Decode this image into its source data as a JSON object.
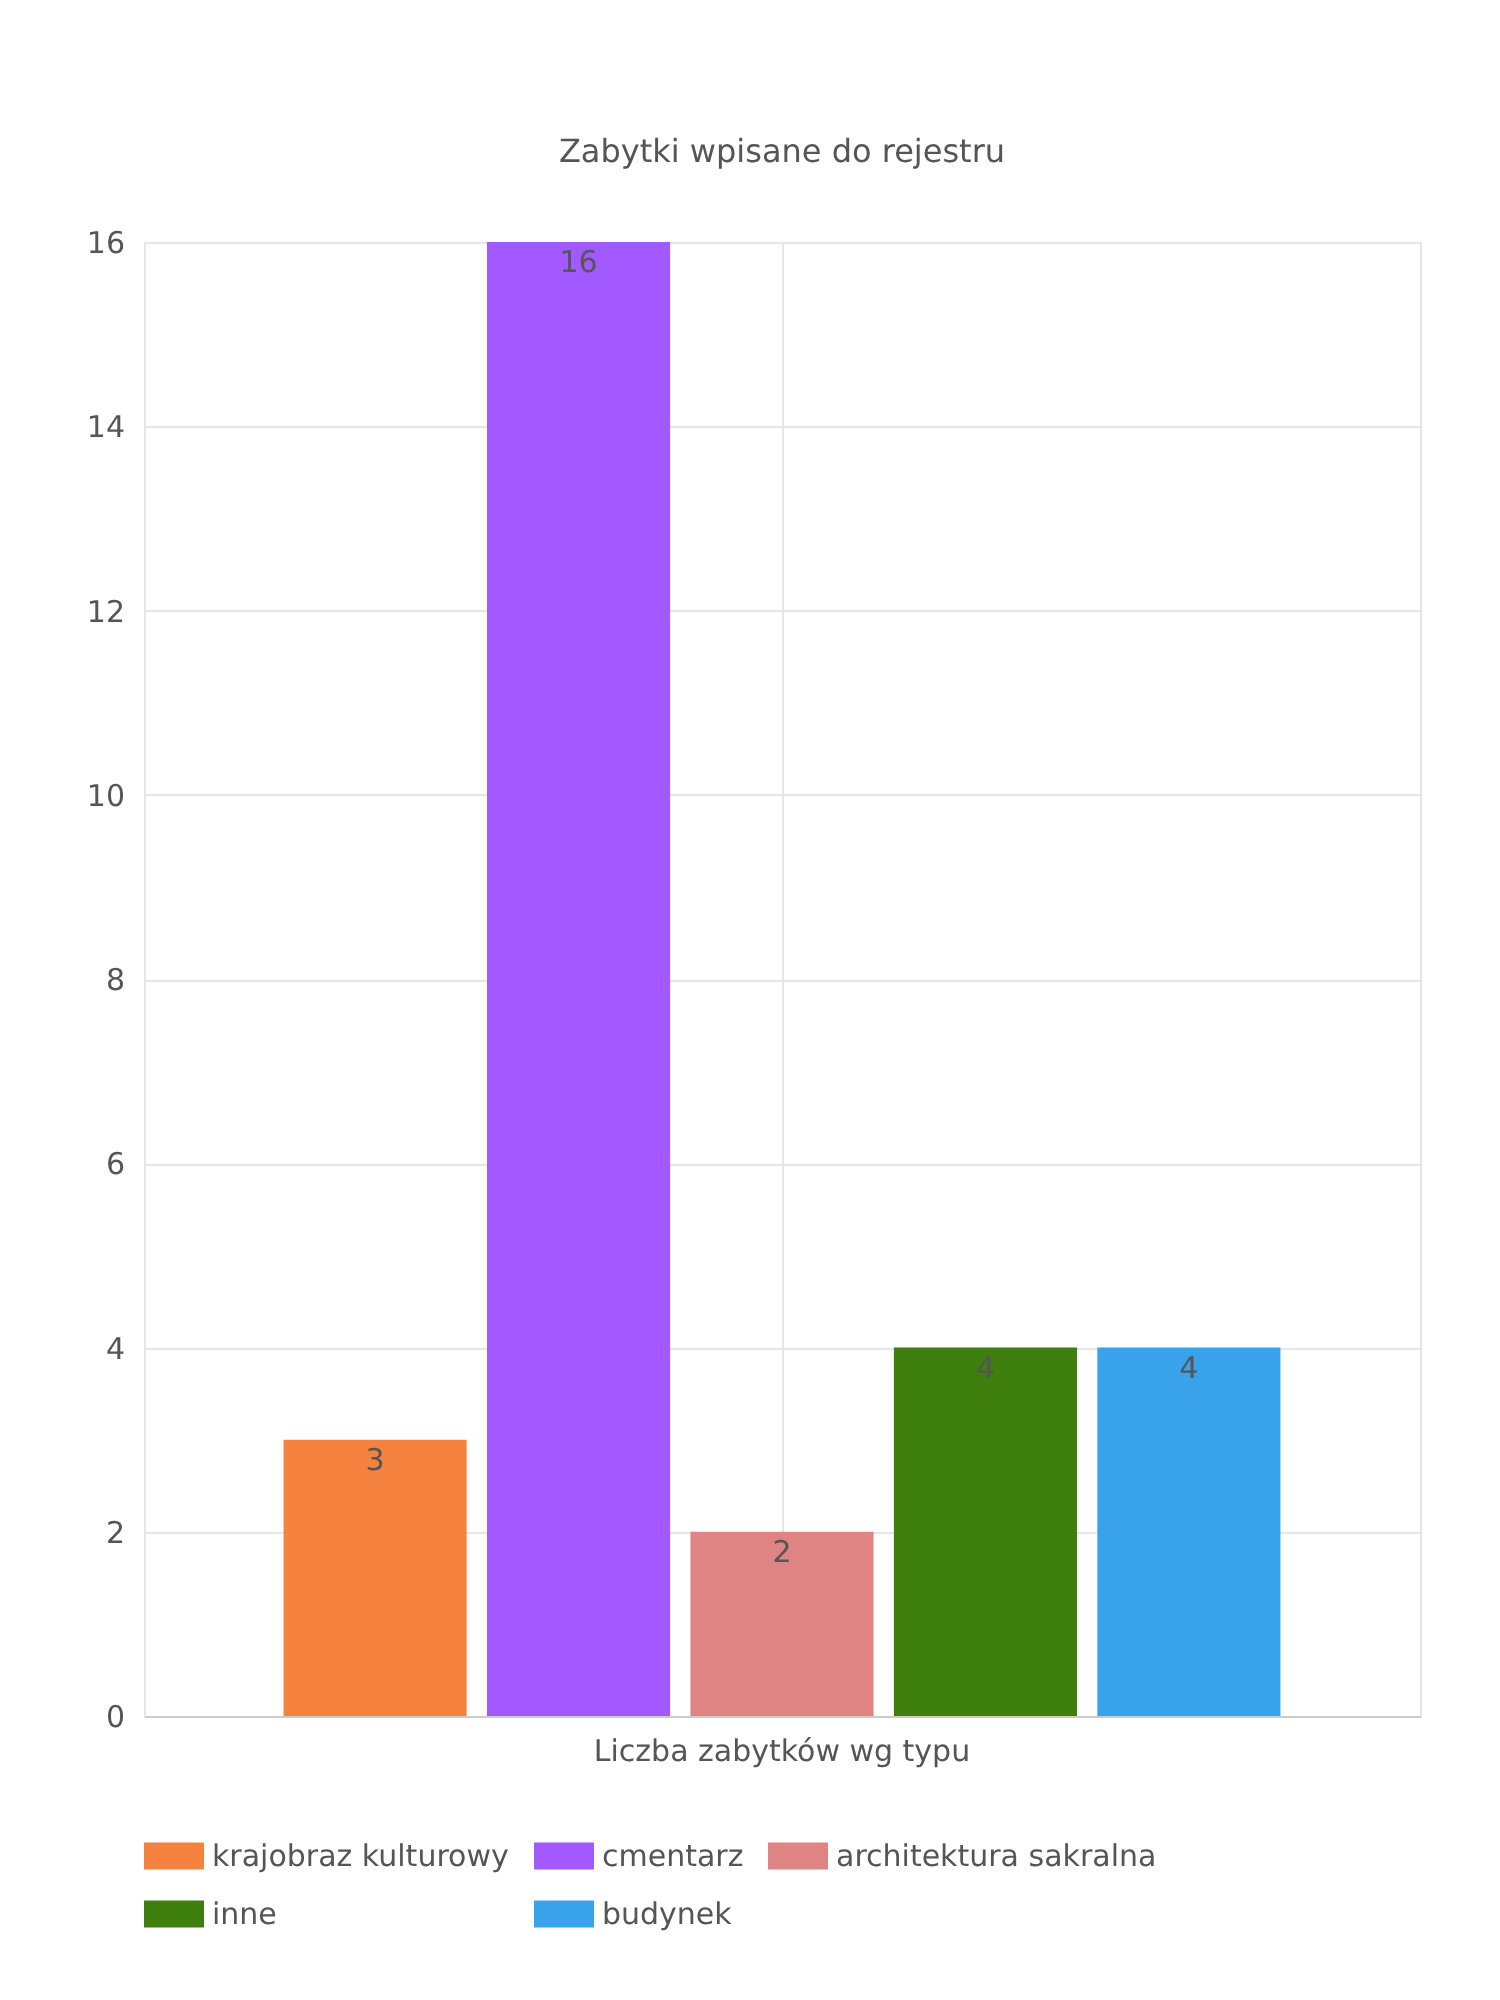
{
  "chart_data": {
    "type": "bar",
    "title": "Zabytki wpisane do rejestru",
    "categories": [
      "Liczba zabytków wg typu"
    ],
    "series": [
      {
        "name": "krajobraz kulturowy",
        "color": "#f5833f",
        "values": [
          3
        ]
      },
      {
        "name": "cmentarz",
        "color": "#a259ff",
        "values": [
          16
        ]
      },
      {
        "name": "architektura sakralna",
        "color": "#e08383",
        "values": [
          2
        ]
      },
      {
        "name": "inne",
        "color": "#3e7f0e",
        "values": [
          4
        ]
      },
      {
        "name": "budynek",
        "color": "#38a2ea",
        "values": [
          4
        ]
      }
    ],
    "ylim": [
      0,
      16
    ],
    "yticks": [
      0,
      2,
      4,
      6,
      8,
      10,
      12,
      14,
      16
    ],
    "grid": true,
    "legend": "bottom",
    "data_labels": true
  }
}
